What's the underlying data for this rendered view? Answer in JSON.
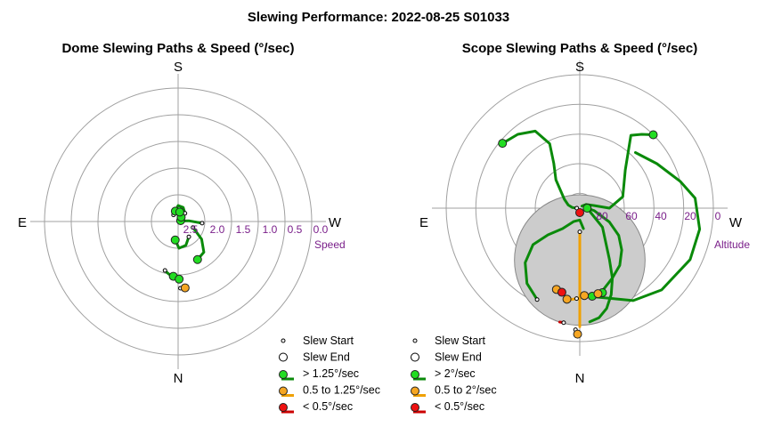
{
  "title": "Slewing Performance: 2022-08-25 S01033",
  "colors": {
    "grid": "#a0a0a0",
    "ring_label": "#7a1f8a",
    "fast": "#0a8a0a",
    "fast_fill": "#22dd22",
    "medium": "#f0a000",
    "medium_fill": "#f5a623",
    "slow": "#cc0000",
    "slow_fill": "#ee1111",
    "moon": "#cccccc"
  },
  "chart_data": [
    {
      "type": "polar",
      "title": "Dome Slewing Paths & Speed (°/sec)",
      "directions": {
        "top": "S",
        "bottom": "N",
        "left": "E",
        "right": "W"
      },
      "radial_label": "Speed",
      "radial_range": [
        2.5,
        0.0
      ],
      "ring_ticks": [
        "2.5",
        "2.0",
        "1.5",
        "1.0",
        "0.5",
        "0.0"
      ],
      "legend": [
        {
          "symbol": "start",
          "label": "Slew Start"
        },
        {
          "symbol": "end",
          "label": "Slew End"
        },
        {
          "symbol": "fast",
          "label": "> 1.25°/sec"
        },
        {
          "symbol": "medium",
          "label": "0.5 to 1.25°/sec"
        },
        {
          "symbol": "slow",
          "label": "< 0.5°/sec"
        }
      ],
      "paths": [
        {
          "class": "fast",
          "points": [
            [
              94,
              2.05
            ],
            [
              86,
              2.3
            ],
            [
              78,
              2.45
            ],
            [
              71,
              2.45
            ]
          ]
        },
        {
          "class": "fast",
          "points": [
            [
              112,
              2.2
            ],
            [
              127,
              1.95
            ],
            [
              140,
              1.75
            ],
            [
              153,
              1.7
            ]
          ]
        },
        {
          "class": "fast",
          "points": [
            [
              145,
              2.15
            ],
            [
              162,
              2.03
            ],
            [
              178,
              2.0
            ],
            [
              189,
              2.15
            ]
          ]
        },
        {
          "class": "fast",
          "points": [
            [
              40,
              2.3
            ],
            [
              20,
              2.22
            ],
            [
              0,
              2.2
            ],
            [
              -15,
              2.3
            ]
          ]
        },
        {
          "class": "fast",
          "points": [
            [
              -35,
              2.35
            ],
            [
              -10,
              2.34
            ],
            [
              15,
              2.34
            ],
            [
              35,
              2.4
            ]
          ]
        },
        {
          "class": "fast",
          "points": [
            [
              195,
              1.55
            ],
            [
              190,
              1.5
            ],
            [
              185,
              1.47
            ]
          ]
        },
        {
          "class": "fast",
          "points": [
            [
              181,
              1.44
            ],
            [
              180,
              1.42
            ],
            [
              179,
              1.42
            ]
          ]
        },
        {
          "class": "medium",
          "points": [
            [
              178,
              1.25
            ],
            [
              176,
              1.25
            ],
            [
              174,
              1.25
            ]
          ]
        }
      ],
      "ends": [
        {
          "class": "fast",
          "az": 71,
          "speed": 2.45
        },
        {
          "class": "fast",
          "az": 153,
          "speed": 1.7
        },
        {
          "class": "fast",
          "az": 189,
          "speed": 2.15
        },
        {
          "class": "fast",
          "az": -15,
          "speed": 2.3
        },
        {
          "class": "fast",
          "az": 35,
          "speed": 2.4
        },
        {
          "class": "fast",
          "az": 185,
          "speed": 1.47
        },
        {
          "class": "fast",
          "az": 179,
          "speed": 1.42
        },
        {
          "class": "medium",
          "az": 174,
          "speed": 1.25
        },
        {
          "class": "fast",
          "az": 10,
          "speed": 2.32
        }
      ]
    },
    {
      "type": "polar",
      "title": "Scope Slewing Paths & Speed (°/sec)",
      "directions": {
        "top": "S",
        "bottom": "N",
        "left": "E",
        "right": "W"
      },
      "radial_label": "Altitude",
      "radial_range": [
        90,
        0
      ],
      "ring_ticks": [
        "80",
        "60",
        "40",
        "20",
        "0"
      ],
      "legend": [
        {
          "symbol": "start",
          "label": "Slew Start"
        },
        {
          "symbol": "end",
          "label": "Slew End"
        },
        {
          "symbol": "fast",
          "label": "> 2°/sec"
        },
        {
          "symbol": "medium",
          "label": "0.5 to 2°/sec"
        },
        {
          "symbol": "slow",
          "label": "< 0.5°/sec"
        }
      ],
      "moon": {
        "az": 0,
        "alt": 55,
        "radius_deg": 20
      },
      "paths": [
        {
          "class": "fast",
          "points": [
            [
              90,
              85
            ],
            [
              130,
              70
            ],
            [
              150,
              50
            ],
            [
              155,
              38
            ],
            [
              160,
              28
            ],
            [
              165,
              20
            ],
            [
              170,
              15
            ],
            [
              175,
              13
            ]
          ]
        },
        {
          "class": "fast",
          "points": [
            [
              90,
              85
            ],
            [
              100,
              80
            ],
            [
              115,
              68
            ],
            [
              125,
              58
            ],
            [
              135,
              50
            ],
            [
              145,
              43
            ],
            [
              155,
              38
            ],
            [
              165,
              32
            ],
            [
              172,
              30
            ]
          ]
        },
        {
          "class": "fast",
          "points": [
            [
              270,
              88
            ],
            [
              275,
              85
            ],
            [
              285,
              82
            ],
            [
              300,
              78
            ],
            [
              320,
              65
            ],
            [
              330,
              55
            ],
            [
              335,
              42
            ],
            [
              330,
              30
            ],
            [
              320,
              25
            ],
            [
              310,
              22
            ]
          ]
        },
        {
          "class": "fast",
          "points": [
            [
              173,
              30
            ],
            [
              150,
              18
            ],
            [
              135,
              12
            ],
            [
              115,
              8
            ],
            [
              100,
              8
            ],
            [
              85,
              12
            ],
            [
              75,
              20
            ],
            [
              60,
              30
            ],
            [
              45,
              37
            ]
          ]
        },
        {
          "class": "fast",
          "points": [
            [
              205,
              22
            ],
            [
              215,
              28
            ],
            [
              225,
              38
            ],
            [
              232,
              50
            ],
            [
              230,
              62
            ],
            [
              220,
              72
            ],
            [
              205,
              80
            ],
            [
              180,
              82
            ],
            [
              170,
              76
            ]
          ]
        },
        {
          "class": "fast",
          "points": [
            [
              45,
              20
            ],
            [
              40,
              25
            ],
            [
              35,
              30
            ],
            [
              50,
              50
            ],
            [
              75,
              60
            ],
            [
              90,
              70
            ],
            [
              80,
              80
            ],
            [
              60,
              85
            ],
            [
              45,
              88
            ]
          ]
        },
        {
          "class": "medium",
          "points": [
            [
              182,
              8
            ],
            [
              181,
              5
            ]
          ]
        },
        {
          "class": "medium",
          "points": [
            [
              180,
              74
            ],
            [
              180,
              68
            ],
            [
              180,
              60
            ],
            [
              180,
              50
            ],
            [
              180,
              40
            ],
            [
              180,
              30
            ],
            [
              180,
              20
            ],
            [
              180,
              10
            ]
          ]
        },
        {
          "class": "medium",
          "points": [
            [
              182,
              29
            ],
            [
              186,
              28
            ],
            [
              188,
              28
            ]
          ]
        },
        {
          "class": "slow",
          "points": [
            [
              188,
              12
            ],
            [
              190,
              12
            ]
          ]
        }
      ],
      "ends": [
        {
          "class": "fast",
          "az": 172,
          "speed": 30
        },
        {
          "class": "fast",
          "az": 45,
          "speed": 20
        },
        {
          "class": "fast",
          "az": 310,
          "speed": 22
        },
        {
          "class": "fast",
          "az": 90,
          "speed": 85
        },
        {
          "class": "fast",
          "az": 165,
          "speed": 31
        },
        {
          "class": "medium",
          "az": 181,
          "speed": 5
        },
        {
          "class": "medium",
          "az": 188,
          "speed": 28
        },
        {
          "class": "medium",
          "az": 177,
          "speed": 31
        },
        {
          "class": "medium",
          "az": 196,
          "speed": 33
        },
        {
          "class": "medium",
          "az": 168,
          "speed": 31
        },
        {
          "class": "slow",
          "az": 192,
          "speed": 32
        },
        {
          "class": "slow",
          "az": 180,
          "speed": 87
        }
      ]
    }
  ]
}
